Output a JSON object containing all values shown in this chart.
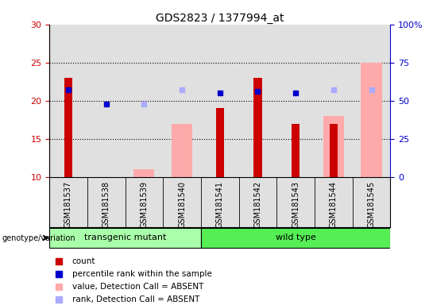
{
  "title": "GDS2823 / 1377994_at",
  "samples": [
    "GSM181537",
    "GSM181538",
    "GSM181539",
    "GSM181540",
    "GSM181541",
    "GSM181542",
    "GSM181543",
    "GSM181544",
    "GSM181545"
  ],
  "groups": [
    {
      "name": "transgenic mutant",
      "indices": [
        0,
        1,
        2,
        3
      ]
    },
    {
      "name": "wild type",
      "indices": [
        4,
        5,
        6,
        7,
        8
      ]
    }
  ],
  "count": [
    23,
    10,
    10,
    10,
    19,
    23,
    17,
    17,
    10
  ],
  "percentile_rank": [
    57,
    48,
    null,
    null,
    55,
    56,
    55,
    null,
    null
  ],
  "absent_value": [
    null,
    null,
    11,
    17,
    null,
    null,
    null,
    18,
    25
  ],
  "absent_rank": [
    null,
    null,
    48,
    57,
    null,
    null,
    null,
    57,
    57
  ],
  "ylim_left": [
    10,
    30
  ],
  "ylim_right": [
    0,
    100
  ],
  "yticks_left": [
    10,
    15,
    20,
    25,
    30
  ],
  "yticks_right": [
    0,
    25,
    50,
    75,
    100
  ],
  "ytick_labels_left": [
    "10",
    "15",
    "20",
    "25",
    "30"
  ],
  "ytick_labels_right": [
    "0",
    "25",
    "50",
    "75",
    "100%"
  ],
  "color_count": "#cc0000",
  "color_rank": "#0000cc",
  "color_absent_value": "#ffaaaa",
  "color_absent_rank": "#aaaaff",
  "color_bg_plot": "#e0e0e0",
  "color_group_transgenic": "#aaffaa",
  "color_group_wildtype": "#55ee55",
  "legend_items": [
    {
      "label": "count",
      "color": "#cc0000"
    },
    {
      "label": "percentile rank within the sample",
      "color": "#0000cc"
    },
    {
      "label": "value, Detection Call = ABSENT",
      "color": "#ffaaaa"
    },
    {
      "label": "rank, Detection Call = ABSENT",
      "color": "#aaaaff"
    }
  ]
}
